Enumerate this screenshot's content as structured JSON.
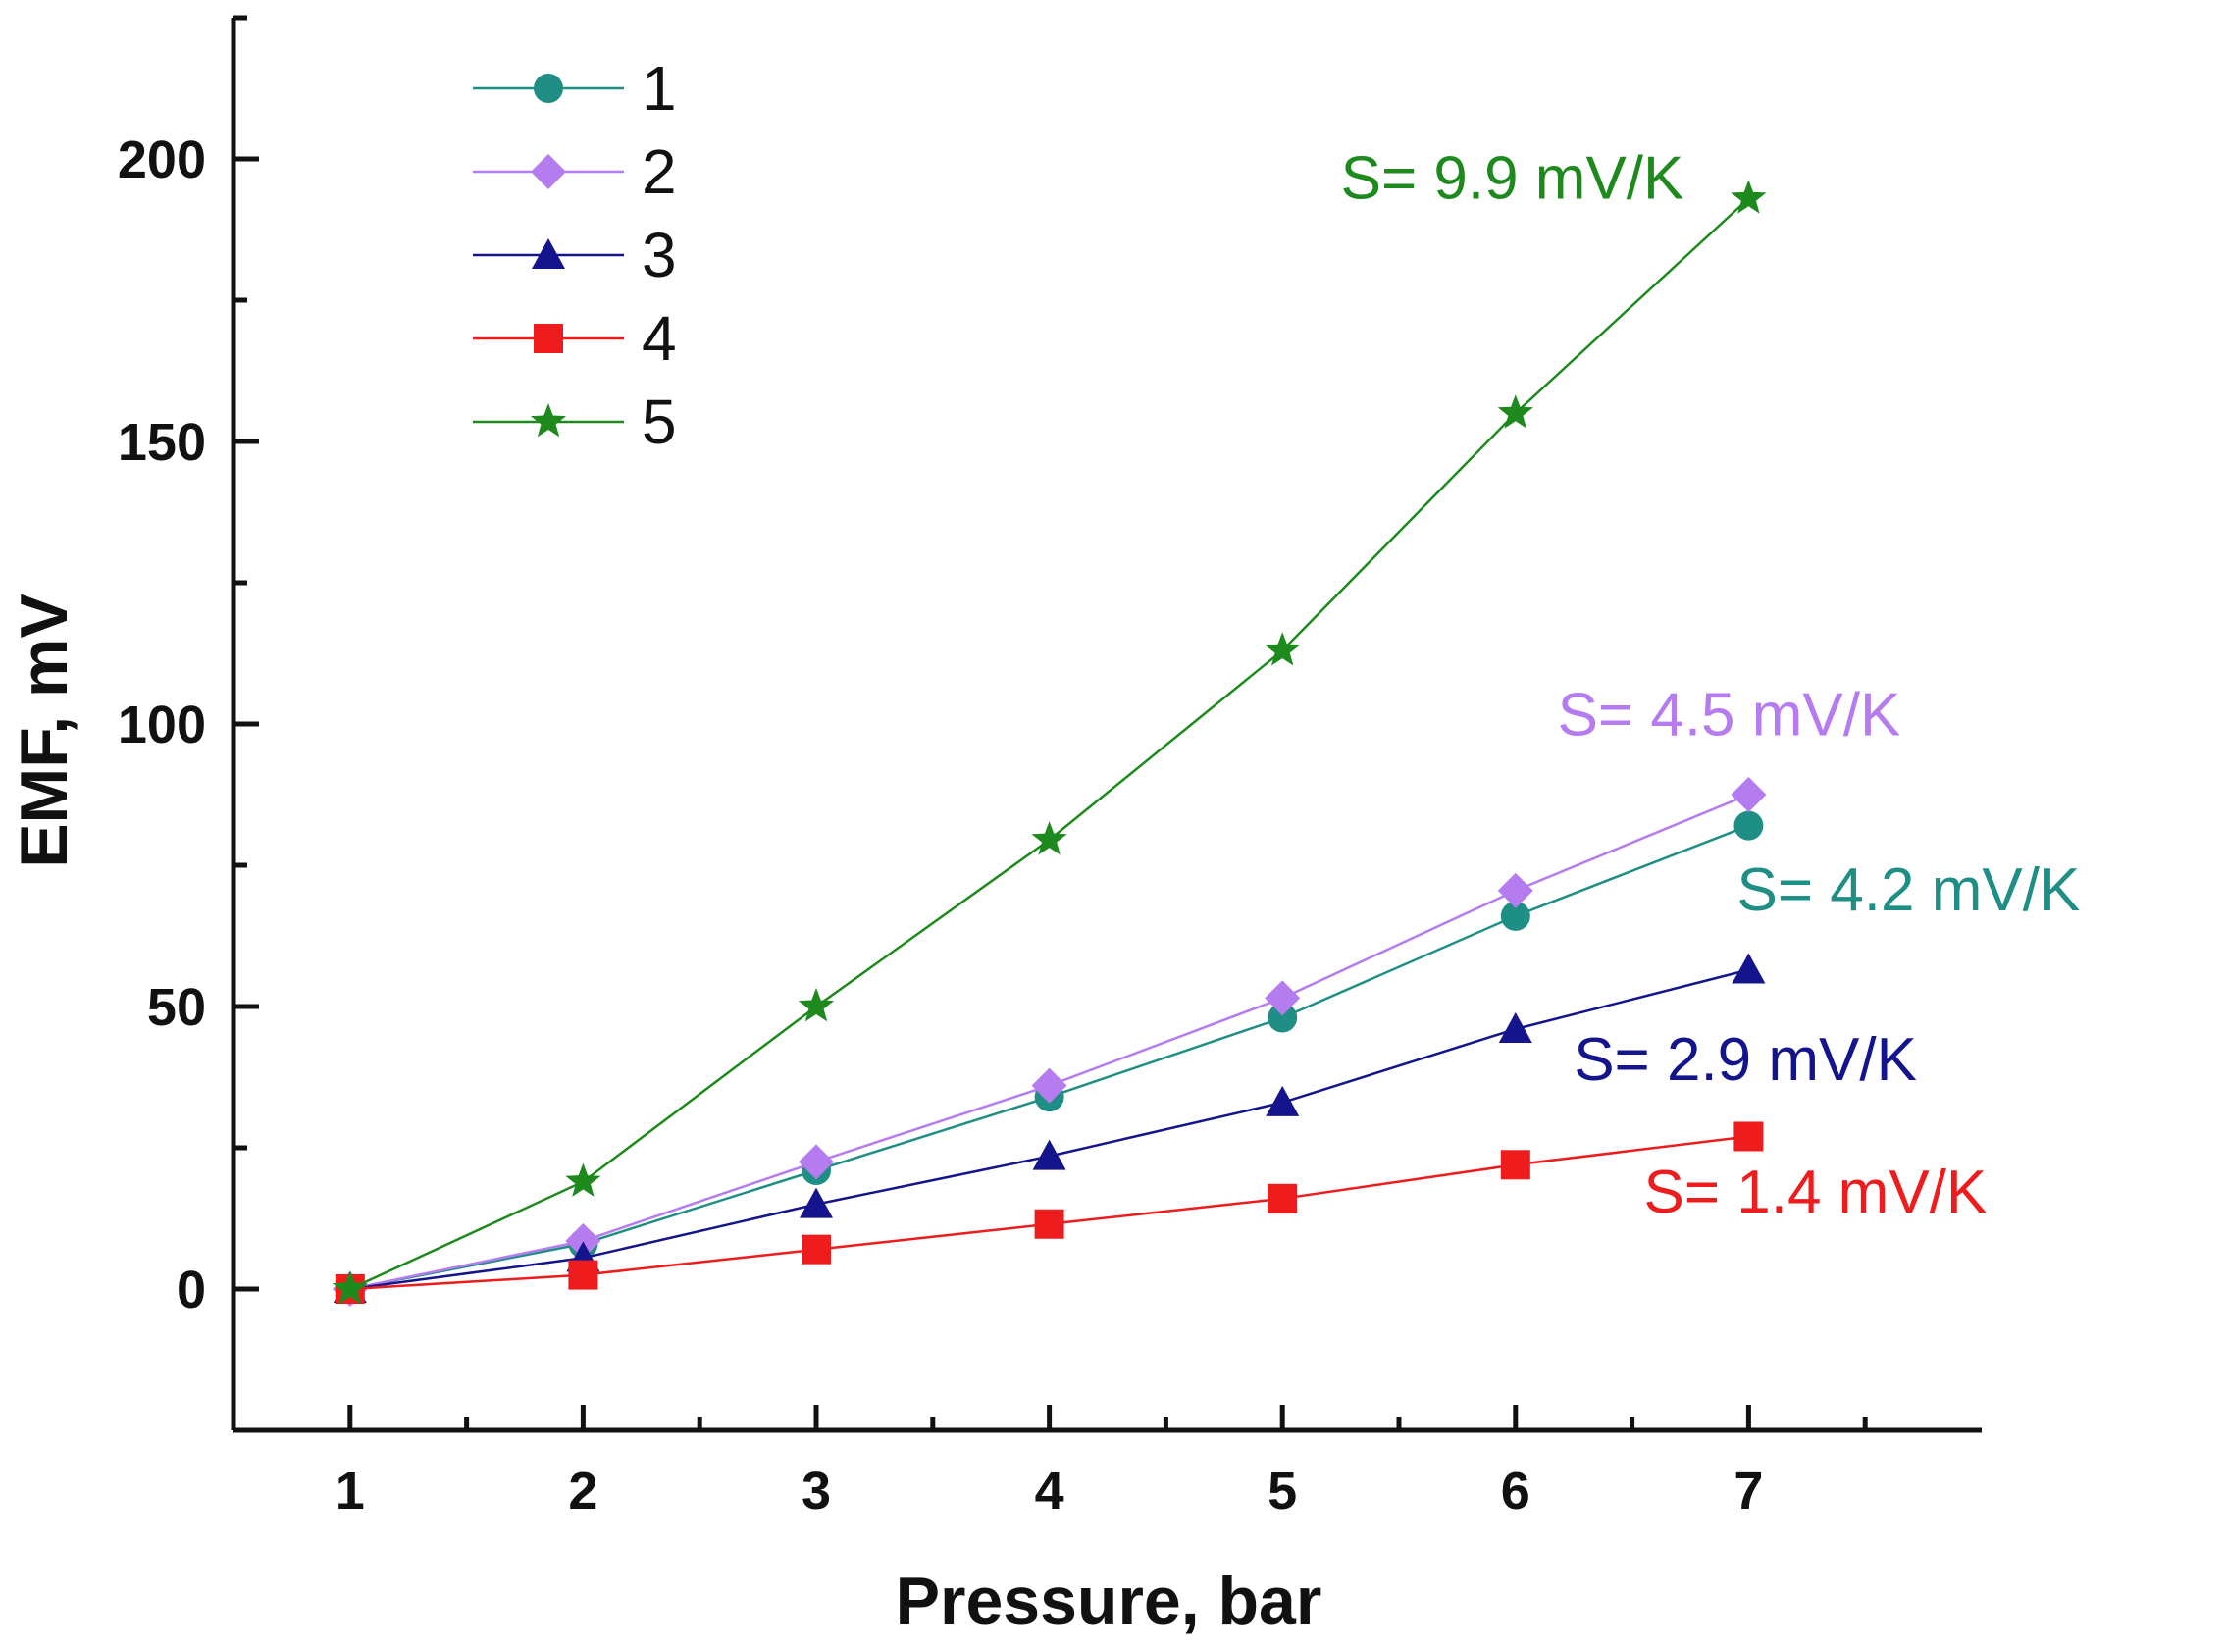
{
  "chart_data": {
    "type": "line",
    "xlabel": "Pressure, bar",
    "ylabel": "EMF, mV",
    "xlim": [
      0.5,
      8.0
    ],
    "ylim": [
      -25,
      225
    ],
    "xticks": [
      "1",
      "2",
      "3",
      "4",
      "5",
      "6",
      "7"
    ],
    "yticks": [
      "0",
      "50",
      "100",
      "150",
      "200"
    ],
    "grid": false,
    "legend_position": "top-left",
    "x": [
      1,
      2,
      3,
      4,
      5,
      6,
      7
    ],
    "series": [
      {
        "name": "1",
        "marker": "circle",
        "color": "#1f8f86",
        "values": [
          0,
          8,
          21,
          34,
          48,
          66,
          82
        ]
      },
      {
        "name": "2",
        "marker": "diamond",
        "color": "#b57cf0",
        "values": [
          0,
          8.5,
          22.5,
          36,
          51.5,
          70.5,
          87.5
        ]
      },
      {
        "name": "3",
        "marker": "triangle",
        "color": "#14148c",
        "values": [
          0,
          5.5,
          15,
          23.5,
          33,
          46,
          56.5
        ]
      },
      {
        "name": "4",
        "marker": "square",
        "color": "#ee1c1c",
        "values": [
          0,
          2.5,
          7,
          11.5,
          16,
          22,
          27
        ]
      },
      {
        "name": "5",
        "marker": "star",
        "color": "#1e8a1e",
        "values": [
          0,
          19,
          50,
          79.5,
          113,
          155,
          193
        ]
      }
    ],
    "annotations": [
      {
        "text": "S= 9.9 mV/K",
        "color": "#1e8a1e",
        "x": 5.25,
        "y": 193
      },
      {
        "text": "S= 4.5 mV/K",
        "color": "#b57cf0",
        "x": 6.18,
        "y": 98
      },
      {
        "text": "S= 4.2 mV/K",
        "color": "#1f8f86",
        "x": 6.95,
        "y": 67
      },
      {
        "text": "S= 2.9 mV/K",
        "color": "#14148c",
        "x": 6.25,
        "y": 37
      },
      {
        "text": "S= 1.4 mV/K",
        "color": "#ee1c1c",
        "x": 6.55,
        "y": 13.5
      }
    ]
  }
}
